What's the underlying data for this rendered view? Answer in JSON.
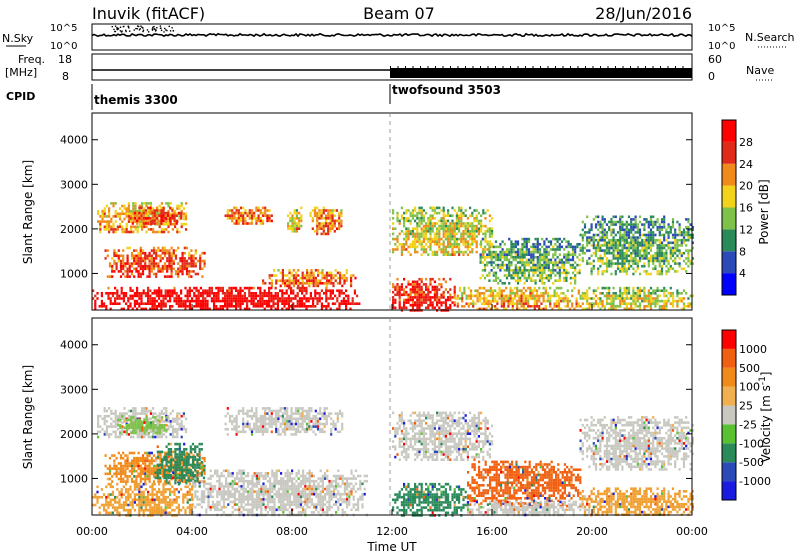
{
  "header": {
    "station": "Inuvik (fitACF)",
    "beam": "Beam 07",
    "date": "28/Jun/2016"
  },
  "panels": {
    "nsky": {
      "label": "N.Sky",
      "ticks": [
        "10^5",
        "10^0"
      ],
      "right_label": "N.Search",
      "right_ticks": [
        "10^5",
        "10^0"
      ]
    },
    "freq": {
      "label_line1": "Freq.",
      "label_line2": "[MHz]",
      "ticks": [
        "18",
        "8"
      ],
      "right_label": "Nave",
      "right_ticks": [
        "60",
        "0"
      ]
    },
    "cpid": {
      "label": "CPID",
      "modes": [
        {
          "name": "themis 3300",
          "start_hour": 0
        },
        {
          "name": "twofsound 3503",
          "start_hour": 12
        }
      ]
    }
  },
  "chart_data": [
    {
      "type": "heatmap",
      "name": "power",
      "ylabel": "Slant Range [km]",
      "xlabel": "",
      "yticks": [
        1000,
        2000,
        3000,
        4000
      ],
      "ylim": [
        180,
        4600
      ],
      "xlim": [
        0,
        24
      ],
      "colorbar_label": "Power [dB]",
      "colorbar_ticks": [
        "28",
        "24",
        "20",
        "16",
        "12",
        "8",
        "4"
      ],
      "colorbar_colors": [
        "#0000ff",
        "#2a4ab8",
        "#2a8a5a",
        "#7fc24a",
        "#f2d21a",
        "#f08a1a",
        "#e02a1a",
        "#ff0000"
      ],
      "blobs": [
        {
          "t0": 0.2,
          "t1": 3.8,
          "r0": 1900,
          "r1": 2600,
          "v": 0.55
        },
        {
          "t0": 1.5,
          "t1": 3.6,
          "r0": 2100,
          "r1": 2500,
          "v": 0.75
        },
        {
          "t0": 5.3,
          "t1": 7.2,
          "r0": 2100,
          "r1": 2500,
          "v": 0.65
        },
        {
          "t0": 7.8,
          "t1": 8.4,
          "r0": 1900,
          "r1": 2500,
          "v": 0.5
        },
        {
          "t0": 8.7,
          "t1": 10.0,
          "r0": 1900,
          "r1": 2500,
          "v": 0.6
        },
        {
          "t0": 0.5,
          "t1": 4.5,
          "r0": 900,
          "r1": 1600,
          "v": 0.7
        },
        {
          "t0": 6.8,
          "t1": 10.5,
          "r0": 700,
          "r1": 1100,
          "v": 0.65
        },
        {
          "t0": 0.0,
          "t1": 10.7,
          "r0": 180,
          "r1": 700,
          "v": 0.9
        },
        {
          "t0": 12.0,
          "t1": 16.0,
          "r0": 1400,
          "r1": 2500,
          "v": 0.45
        },
        {
          "t0": 12.0,
          "t1": 14.5,
          "r0": 180,
          "r1": 900,
          "v": 0.8
        },
        {
          "t0": 14.5,
          "t1": 19.5,
          "r0": 180,
          "r1": 700,
          "v": 0.55
        },
        {
          "t0": 15.5,
          "t1": 19.5,
          "r0": 800,
          "r1": 1800,
          "v": 0.3
        },
        {
          "t0": 19.5,
          "t1": 24.0,
          "r0": 1000,
          "r1": 2300,
          "v": 0.3
        },
        {
          "t0": 19.5,
          "t1": 24.0,
          "r0": 180,
          "r1": 700,
          "v": 0.45
        }
      ]
    },
    {
      "type": "heatmap",
      "name": "velocity",
      "ylabel": "Slant Range [km]",
      "xlabel": "Time UT",
      "yticks": [
        1000,
        2000,
        3000,
        4000
      ],
      "ylim": [
        180,
        4600
      ],
      "xlim": [
        0,
        24
      ],
      "xticks": [
        "00:00",
        "04:00",
        "08:00",
        "12:00",
        "16:00",
        "20:00",
        "00:00"
      ],
      "colorbar_label": "Velocity [m s^-1]",
      "colorbar_ticks": [
        "1000",
        "500",
        "100",
        "25",
        "-25",
        "-100",
        "-500",
        "-1000"
      ],
      "colorbar_colors": [
        "#ff0000",
        "#f06010",
        "#f08a1a",
        "#f0b050",
        "#c8c8c0",
        "#5ac232",
        "#2a8a5a",
        "#2a4ab8",
        "#1a1ae0"
      ],
      "blobs": [
        {
          "t0": 0.2,
          "t1": 3.8,
          "r0": 1900,
          "r1": 2600,
          "c": "#c8c8c0"
        },
        {
          "t0": 1.0,
          "t1": 3.0,
          "r0": 2000,
          "r1": 2400,
          "c": "#7fc24a"
        },
        {
          "t0": 5.3,
          "t1": 10.0,
          "r0": 2000,
          "r1": 2600,
          "c": "#c8c8c0"
        },
        {
          "t0": 0.5,
          "t1": 4.5,
          "r0": 900,
          "r1": 1600,
          "c": "#f08a1a"
        },
        {
          "t0": 2.5,
          "t1": 4.5,
          "r0": 900,
          "r1": 1800,
          "c": "#2a8a5a"
        },
        {
          "t0": 4.0,
          "t1": 11.0,
          "r0": 180,
          "r1": 1200,
          "c": "#c8c8c0"
        },
        {
          "t0": 0.0,
          "t1": 4.0,
          "r0": 180,
          "r1": 900,
          "c": "#f0a030"
        },
        {
          "t0": 12.0,
          "t1": 16.0,
          "r0": 1400,
          "r1": 2500,
          "c": "#c8c8c0"
        },
        {
          "t0": 12.0,
          "t1": 15.0,
          "r0": 180,
          "r1": 900,
          "c": "#2a8a5a"
        },
        {
          "t0": 15.0,
          "t1": 19.5,
          "r0": 400,
          "r1": 1400,
          "c": "#f06010"
        },
        {
          "t0": 15.0,
          "t1": 20.0,
          "r0": 180,
          "r1": 500,
          "c": "#c8c8c0"
        },
        {
          "t0": 19.5,
          "t1": 24.0,
          "r0": 1200,
          "r1": 2400,
          "c": "#c8c8c0"
        },
        {
          "t0": 19.5,
          "t1": 24.0,
          "r0": 180,
          "r1": 800,
          "c": "#f0a030"
        }
      ]
    }
  ]
}
